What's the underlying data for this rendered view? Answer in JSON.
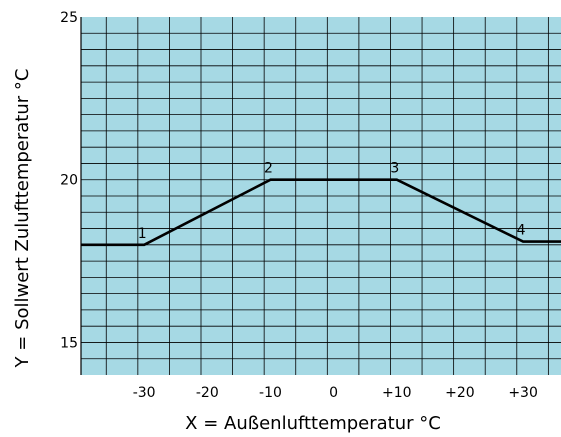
{
  "chart_data": {
    "type": "line",
    "title": "",
    "xlabel": "X = Außenlufttemperatur °C",
    "ylabel": "Y = Sollwert Zulufttemperatur °C",
    "xlim": [
      -40,
      36
    ],
    "ylim": [
      14,
      25
    ],
    "grid": true,
    "plot_background": "#a6d9e4",
    "grid_color": "#000000",
    "line_color": "#000000",
    "x_ticks": [
      {
        "value": -30,
        "label": "-30"
      },
      {
        "value": -20,
        "label": "-20"
      },
      {
        "value": -10,
        "label": "-10"
      },
      {
        "value": 0,
        "label": "0"
      },
      {
        "value": 10,
        "label": "+10"
      },
      {
        "value": 20,
        "label": "+20"
      },
      {
        "value": 30,
        "label": "+30"
      }
    ],
    "y_ticks": [
      {
        "value": 15,
        "label": "15"
      },
      {
        "value": 20,
        "label": "20"
      },
      {
        "value": 25,
        "label": "25"
      }
    ],
    "series": [
      {
        "x": [
          -40,
          -30,
          -10,
          10,
          30,
          36
        ],
        "y": [
          18,
          18,
          20,
          20,
          18.1,
          18.1
        ]
      }
    ],
    "point_labels": [
      {
        "label": "1",
        "x": -30,
        "y": 18
      },
      {
        "label": "2",
        "x": -10,
        "y": 20
      },
      {
        "label": "3",
        "x": 10,
        "y": 20
      },
      {
        "label": "4",
        "x": 30,
        "y": 18.1
      }
    ]
  }
}
